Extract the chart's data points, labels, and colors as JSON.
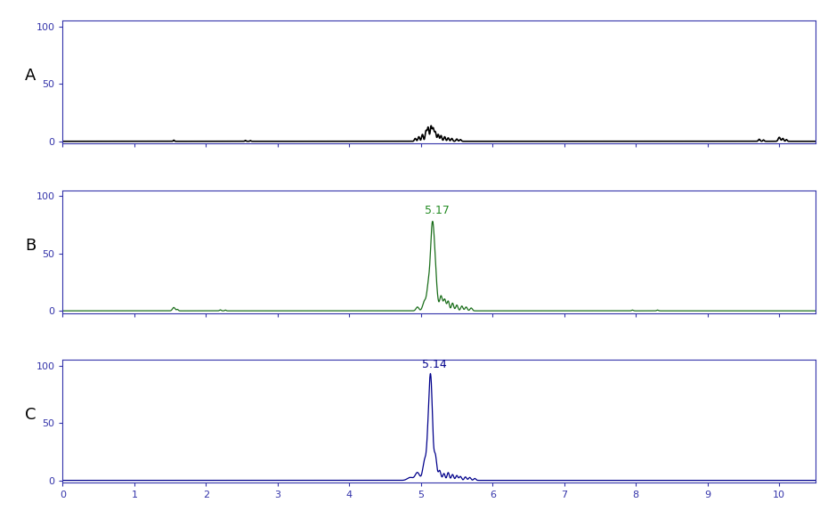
{
  "panel_labels": [
    "A",
    "B",
    "C"
  ],
  "x_min": 0,
  "x_max": 10.5,
  "y_min": 0,
  "y_max": 100,
  "x_ticks": [
    0,
    1,
    2,
    3,
    4,
    5,
    6,
    7,
    8,
    9,
    10
  ],
  "y_ticks": [
    0,
    50,
    100
  ],
  "colors": [
    "black",
    "#1a6e1a",
    "#00008B"
  ],
  "peak_label_B": "5.17",
  "peak_label_C": "5.14",
  "peak_label_color": "#228B22",
  "peak_label_color_C": "#00008B",
  "background_color": "white",
  "figsize": [
    9.39,
    5.83
  ],
  "dpi": 100,
  "tick_color": "#3333AA",
  "spine_color": "#3333AA"
}
